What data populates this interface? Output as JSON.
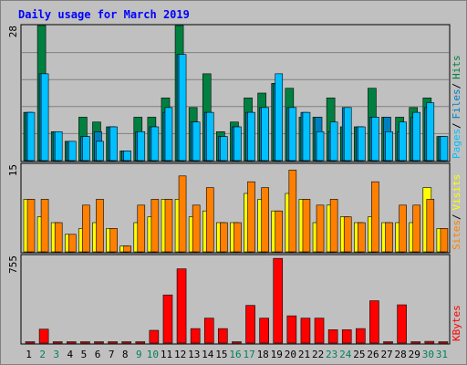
{
  "chart_data": {
    "type": "bar",
    "title": "Daily usage for March 2019",
    "categories": [
      "1",
      "2",
      "3",
      "4",
      "5",
      "6",
      "7",
      "8",
      "9",
      "10",
      "11",
      "12",
      "13",
      "14",
      "15",
      "16",
      "17",
      "18",
      "19",
      "20",
      "21",
      "22",
      "23",
      "24",
      "25",
      "26",
      "27",
      "28",
      "29",
      "30",
      "31"
    ],
    "weekend_days": [
      "2",
      "3",
      "9",
      "10",
      "16",
      "17",
      "23",
      "24",
      "30",
      "31"
    ],
    "colors": {
      "hits": "#008040",
      "files": "#0080c0",
      "pages": "#00c0ff",
      "visits": "#ffff00",
      "sites": "#ff8000",
      "kbytes": "#ff0000",
      "weekday_label": "#000000",
      "weekend_label": "#00805c",
      "title": "#0000ff",
      "background": "#c0c0c0",
      "grid": "#808080"
    },
    "panels": [
      {
        "name": "hits-files-pages",
        "y_max_label": "28",
        "ylim": [
          0,
          28
        ],
        "legend": [
          "Pages",
          "Files",
          "Hits"
        ],
        "series": [
          {
            "name": "Hits",
            "values": [
              10,
              28,
              6,
              4,
              9,
              8,
              7,
              2,
              9,
              9,
              13,
              28,
              11,
              18,
              6,
              8,
              13,
              14,
              16,
              15,
              9,
              9,
              13,
              7,
              7,
              15,
              9,
              9,
              11,
              13,
              5
            ]
          },
          {
            "name": "Files",
            "values": [
              10,
              18,
              6,
              4,
              5,
              6,
              7,
              2,
              6,
              7,
              10,
              22,
              8,
              10,
              5,
              7,
              10,
              11,
              16,
              11,
              10,
              9,
              6,
              11,
              7,
              9,
              9,
              6,
              9,
              11,
              5
            ]
          },
          {
            "name": "Pages",
            "values": [
              10,
              18,
              6,
              4,
              5,
              4,
              7,
              2,
              6,
              7,
              11,
              22,
              8,
              10,
              5,
              7,
              10,
              11,
              18,
              11,
              10,
              6,
              8,
              11,
              7,
              9,
              6,
              8,
              10,
              12,
              5
            ]
          }
        ]
      },
      {
        "name": "visits-sites",
        "y_max_label": "15",
        "ylim": [
          0,
          15
        ],
        "legend": [
          "Sites",
          "Visits"
        ],
        "series": [
          {
            "name": "Visits",
            "values": [
              9,
              6,
              5,
              3,
              4,
              5,
              4,
              1,
              5,
              6,
              9,
              9,
              6,
              7,
              5,
              5,
              10,
              9,
              7,
              10,
              9,
              5,
              8,
              6,
              5,
              6,
              5,
              5,
              5,
              11,
              4
            ]
          },
          {
            "name": "Sites",
            "values": [
              9,
              9,
              5,
              3,
              8,
              9,
              4,
              1,
              8,
              9,
              9,
              13,
              8,
              11,
              5,
              5,
              12,
              11,
              7,
              14,
              9,
              8,
              9,
              6,
              5,
              12,
              5,
              8,
              8,
              9,
              4
            ]
          }
        ]
      },
      {
        "name": "kbytes",
        "y_max_label": "755",
        "ylim": [
          0,
          755
        ],
        "legend": [
          "KBytes"
        ],
        "series": [
          {
            "name": "KBytes",
            "values": [
              8,
              120,
              8,
              8,
              8,
              8,
              8,
              8,
              8,
              110,
              415,
              640,
              125,
              215,
              125,
              8,
              325,
              215,
              730,
              235,
              215,
              215,
              115,
              115,
              125,
              365,
              8,
              330,
              8,
              15,
              8
            ]
          }
        ]
      }
    ]
  }
}
